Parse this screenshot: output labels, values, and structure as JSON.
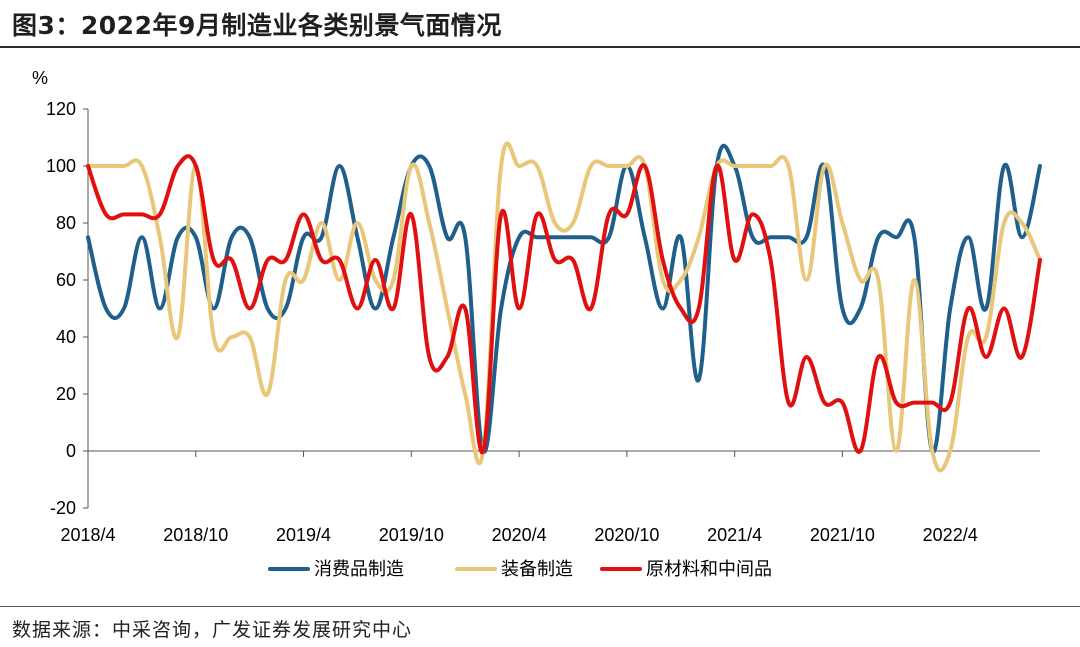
{
  "header": {
    "title": "图3：2022年9月制造业各类别景气面情况"
  },
  "footer": {
    "source": "数据来源：中采咨询，广发证券发展研究中心"
  },
  "chart_data": {
    "type": "line",
    "title": "图3：2022年9月制造业各类别景气面情况",
    "ylabel": "%",
    "xlabel": "",
    "ylim": [
      -20,
      120
    ],
    "yticks": [
      -20,
      0,
      20,
      40,
      60,
      80,
      100,
      120
    ],
    "grid": false,
    "legend": "bottom",
    "x": [
      "2018/4",
      "2018/5",
      "2018/6",
      "2018/7",
      "2018/8",
      "2018/9",
      "2018/10",
      "2018/11",
      "2018/12",
      "2019/1",
      "2019/2",
      "2019/3",
      "2019/4",
      "2019/5",
      "2019/6",
      "2019/7",
      "2019/8",
      "2019/9",
      "2019/10",
      "2019/11",
      "2019/12",
      "2020/1",
      "2020/2",
      "2020/3",
      "2020/4",
      "2020/5",
      "2020/6",
      "2020/7",
      "2020/8",
      "2020/9",
      "2020/10",
      "2020/11",
      "2020/12",
      "2021/1",
      "2021/2",
      "2021/3",
      "2021/4",
      "2021/5",
      "2021/6",
      "2021/7",
      "2021/8",
      "2021/9",
      "2021/10",
      "2021/11",
      "2021/12",
      "2022/1",
      "2022/2",
      "2022/3",
      "2022/4",
      "2022/5",
      "2022/6",
      "2022/7",
      "2022/8",
      "2022/9"
    ],
    "xticks": [
      "2018/4",
      "2018/10",
      "2019/4",
      "2019/10",
      "2020/4",
      "2020/10",
      "2021/4",
      "2021/10",
      "2022/4"
    ],
    "series": [
      {
        "name": "消费品制造",
        "color": "#1f5f8b",
        "values": [
          75,
          50,
          50,
          75,
          50,
          75,
          75,
          50,
          75,
          75,
          50,
          50,
          75,
          75,
          100,
          75,
          50,
          75,
          100,
          100,
          75,
          75,
          0,
          50,
          75,
          75,
          75,
          75,
          75,
          75,
          100,
          75,
          50,
          75,
          25,
          100,
          100,
          75,
          75,
          75,
          75,
          100,
          50,
          50,
          75,
          75,
          75,
          0,
          50,
          75,
          50,
          100,
          75,
          100
        ]
      },
      {
        "name": "装备制造",
        "color": "#e8c77a",
        "values": [
          100,
          100,
          100,
          100,
          75,
          40,
          100,
          40,
          40,
          40,
          20,
          60,
          60,
          80,
          60,
          80,
          60,
          60,
          100,
          80,
          50,
          20,
          0,
          100,
          100,
          100,
          80,
          80,
          100,
          100,
          100,
          100,
          60,
          60,
          75,
          100,
          100,
          100,
          100,
          100,
          60,
          100,
          80,
          60,
          60,
          0,
          60,
          0,
          0,
          40,
          40,
          80,
          80,
          67
        ]
      },
      {
        "name": "原材料和中间品",
        "color": "#e01010",
        "values": [
          100,
          83,
          83,
          83,
          83,
          100,
          100,
          67,
          67,
          50,
          67,
          67,
          83,
          67,
          67,
          50,
          67,
          50,
          83,
          33,
          33,
          50,
          0,
          83,
          50,
          83,
          67,
          67,
          50,
          83,
          83,
          100,
          67,
          50,
          50,
          100,
          67,
          83,
          67,
          17,
          33,
          17,
          17,
          0,
          33,
          17,
          17,
          17,
          17,
          50,
          33,
          50,
          33,
          67
        ]
      }
    ]
  }
}
